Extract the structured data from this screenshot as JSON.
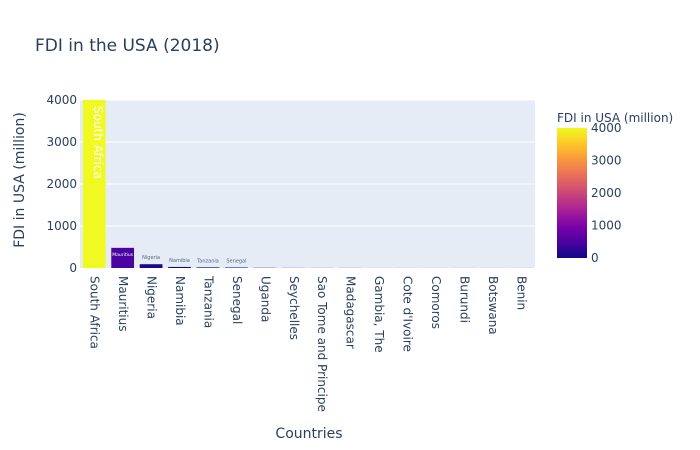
{
  "chart_data": {
    "type": "bar",
    "title": "FDI in the USA (2018)",
    "xlabel": "Countries",
    "ylabel": "FDI in USA (million)",
    "ylim": [
      0,
      4000
    ],
    "yticks": [
      0,
      1000,
      2000,
      3000,
      4000
    ],
    "categories": [
      "South Africa",
      "Mauritius",
      "Nigeria",
      "Namibia",
      "Tanzania",
      "Senegal",
      "Uganda",
      "Seychelles",
      "Sao Tome and Principe",
      "Madagascar",
      "Gambia, The",
      "Cote d'Ivoire",
      "Comoros",
      "Burundi",
      "Botswana",
      "Benin"
    ],
    "values": [
      4000,
      480,
      90,
      25,
      15,
      12,
      5,
      3,
      2,
      2,
      1,
      1,
      1,
      1,
      1,
      1
    ],
    "bar_labels": [
      "South Africa",
      "Mauritius",
      "Nigeria",
      "Namibia",
      "Tanzania",
      "Senegal",
      "",
      "",
      "",
      "",
      "",
      "",
      "",
      "",
      "",
      ""
    ],
    "grid": true,
    "colorbar": {
      "title": "FDI in USA (million)",
      "range": [
        0,
        4000
      ],
      "ticks": [
        0,
        1000,
        2000,
        3000,
        4000
      ],
      "colorscale": [
        "#0d0887",
        "#46039f",
        "#7201a8",
        "#9c179e",
        "#bd3786",
        "#d8576b",
        "#ed7953",
        "#fb9f3a",
        "#fdca26",
        "#f0f921"
      ]
    },
    "plot_bg": "#e5ecf6"
  }
}
